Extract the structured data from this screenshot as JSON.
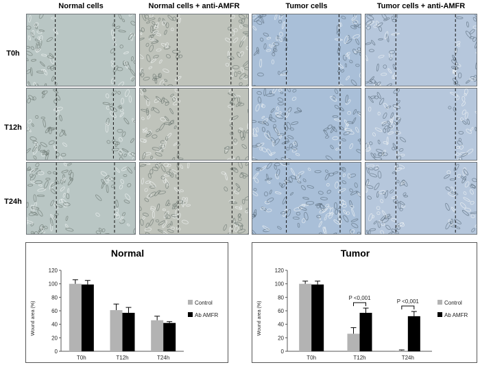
{
  "figure": {
    "columns": [
      "Normal cells",
      "Normal cells + anti-AMFR",
      "Tumor cells",
      "Tumor cells + anti-AMFR"
    ],
    "rows": [
      "T0h",
      "T12h",
      "T24h"
    ],
    "colors": {
      "normal_bg": "#b9c6c4",
      "normal_anti_bg": "#bfc3bb",
      "tumor_bg": "#a9bfd8",
      "tumor_anti_bg": "#b6c7dc",
      "control_bar": "#b3b3b3",
      "ab_bar": "#000000"
    }
  },
  "chart_data": [
    {
      "type": "bar",
      "title": "Normal",
      "categories": [
        "T0h",
        "T12h",
        "T24h"
      ],
      "series": [
        {
          "name": "Control",
          "values": [
            100,
            61,
            46
          ],
          "errors": [
            6,
            9,
            6
          ]
        },
        {
          "name": "Ab AMFR",
          "values": [
            99,
            57,
            42
          ],
          "errors": [
            6,
            8,
            2
          ]
        }
      ],
      "ylabel": "Wound area (%)",
      "ylim": [
        0,
        120
      ],
      "yticks": [
        0,
        20,
        40,
        60,
        80,
        100,
        120
      ],
      "legend_position": "right",
      "annotations": []
    },
    {
      "type": "bar",
      "title": "Tumor",
      "categories": [
        "T0h",
        "T12h",
        "T24h"
      ],
      "series": [
        {
          "name": "Control",
          "values": [
            100,
            26,
            1
          ],
          "errors": [
            4,
            9,
            1
          ]
        },
        {
          "name": "Ab AMFR",
          "values": [
            99,
            57,
            52
          ],
          "errors": [
            5,
            7,
            7
          ]
        }
      ],
      "ylabel": "Wound area (%)",
      "ylim": [
        0,
        120
      ],
      "yticks": [
        0,
        20,
        40,
        60,
        80,
        100,
        120
      ],
      "legend_position": "right",
      "annotations": [
        {
          "category": "T12h",
          "text": "P <0,001"
        },
        {
          "category": "T24h",
          "text": "P <0,001"
        }
      ]
    }
  ]
}
